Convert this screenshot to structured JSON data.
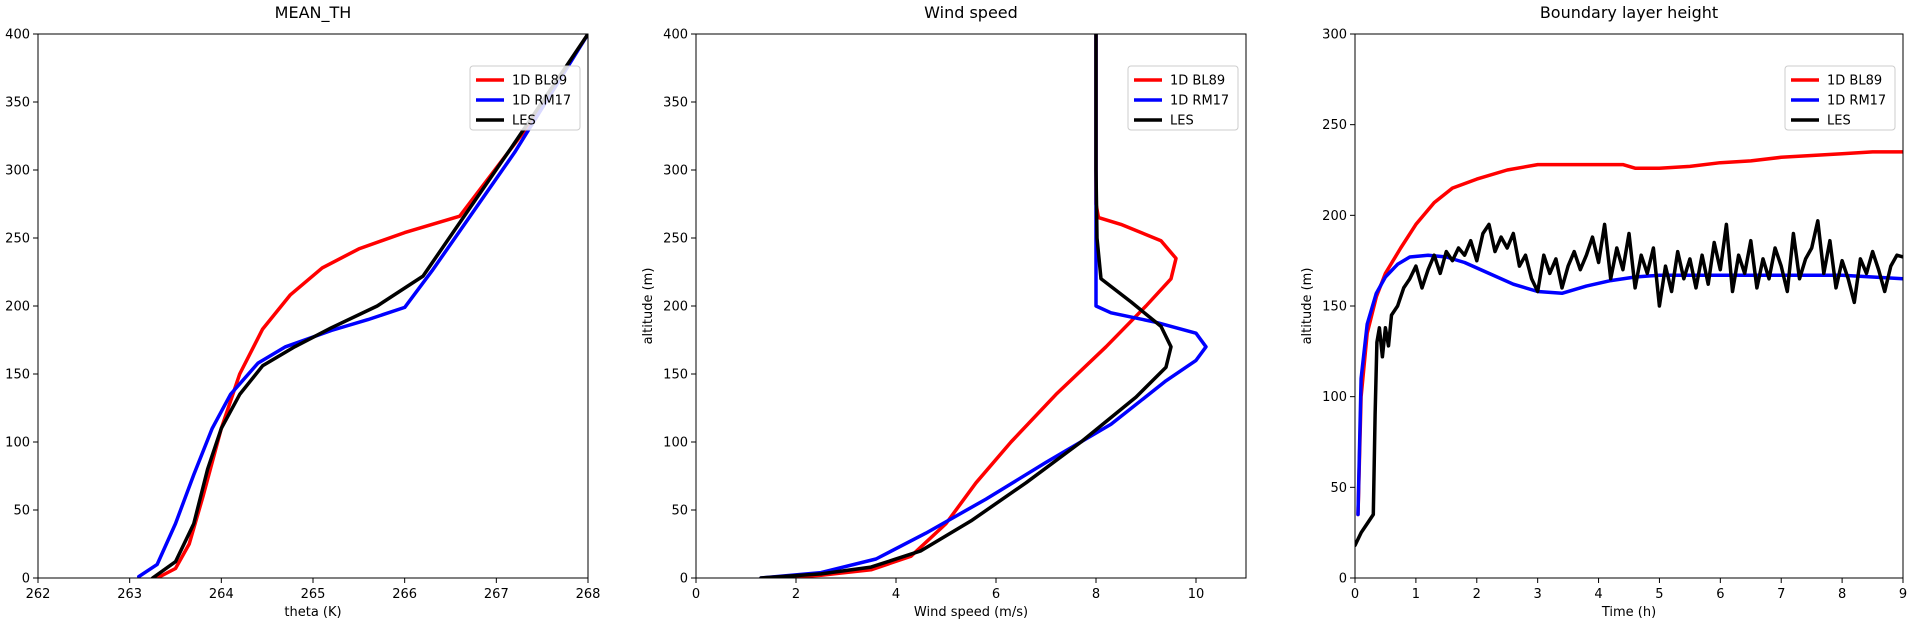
{
  "figure": {
    "background": "#ffffff"
  },
  "chart_data": [
    {
      "type": "line",
      "title": "MEAN_TH",
      "xlabel": "theta (K)",
      "ylabel": "",
      "xlim": [
        262,
        268
      ],
      "ylim": [
        0,
        400
      ],
      "xticks": [
        262,
        263,
        264,
        265,
        266,
        267,
        268
      ],
      "yticks": [
        0,
        50,
        100,
        150,
        200,
        250,
        300,
        350,
        400
      ],
      "grid": false,
      "legend": "top-right",
      "series": [
        {
          "name": "1D BL89",
          "color": "#ff0000",
          "x": [
            263.3,
            263.5,
            263.65,
            263.8,
            264.0,
            264.2,
            264.45,
            264.75,
            265.1,
            265.5,
            266.0,
            266.6,
            267.4,
            268.0
          ],
          "y": [
            0,
            7,
            25,
            60,
            110,
            150,
            183,
            208,
            228,
            242,
            254,
            266,
            337,
            400
          ]
        },
        {
          "name": "1D RM17",
          "color": "#0000ff",
          "x": [
            263.1,
            263.3,
            263.5,
            263.7,
            263.9,
            264.1,
            264.4,
            264.7,
            265.2,
            265.6,
            266.0,
            266.3,
            267.2,
            268.0
          ],
          "y": [
            1,
            10,
            40,
            76,
            110,
            135,
            158,
            170,
            182,
            190,
            199,
            226,
            313,
            400
          ]
        },
        {
          "name": "LES",
          "color": "#000000",
          "x": [
            263.25,
            263.5,
            263.7,
            263.85,
            264.0,
            264.2,
            264.45,
            264.8,
            265.2,
            265.7,
            266.2,
            267.2,
            268.0
          ],
          "y": [
            0,
            12,
            40,
            80,
            110,
            135,
            156,
            170,
            184,
            200,
            222,
            320,
            400
          ]
        }
      ]
    },
    {
      "type": "line",
      "title": "Wind speed",
      "xlabel": "Wind speed (m/s)",
      "ylabel": "altitude (m)",
      "xlim": [
        0,
        11
      ],
      "ylim": [
        0,
        400
      ],
      "xticks": [
        0,
        2,
        4,
        6,
        8,
        10
      ],
      "yticks": [
        0,
        50,
        100,
        150,
        200,
        250,
        300,
        350,
        400
      ],
      "grid": false,
      "legend": "top-right",
      "series": [
        {
          "name": "1D BL89",
          "color": "#ff0000",
          "x": [
            1.5,
            2.5,
            3.5,
            4.3,
            5.0,
            5.6,
            6.3,
            7.2,
            8.2,
            9.0,
            9.5,
            9.6,
            9.3,
            8.5,
            8.05,
            8.0,
            8.0
          ],
          "y": [
            0,
            2,
            6,
            16,
            40,
            70,
            100,
            135,
            170,
            200,
            220,
            235,
            248,
            260,
            265,
            275,
            400
          ]
        },
        {
          "name": "1D RM17",
          "color": "#0000ff",
          "x": [
            1.3,
            2.5,
            3.6,
            4.6,
            5.8,
            7.0,
            8.3,
            9.4,
            10.0,
            10.2,
            10.0,
            9.2,
            8.3,
            8.0,
            8.0,
            8.0
          ],
          "y": [
            0,
            4,
            14,
            33,
            58,
            85,
            113,
            145,
            160,
            170,
            180,
            188,
            195,
            200,
            220,
            400
          ]
        },
        {
          "name": "LES",
          "color": "#000000",
          "x": [
            1.3,
            2.5,
            3.5,
            4.5,
            5.5,
            6.6,
            7.7,
            8.8,
            9.4,
            9.5,
            9.3,
            8.7,
            8.1,
            8.02,
            8.0,
            8.0
          ],
          "y": [
            0,
            3,
            8,
            20,
            42,
            70,
            100,
            133,
            155,
            170,
            185,
            203,
            220,
            250,
            300,
            400
          ]
        }
      ]
    },
    {
      "type": "line",
      "title": "Boundary layer height",
      "xlabel": "Time (h)",
      "ylabel": "altitude (m)",
      "xlim": [
        0,
        9
      ],
      "ylim": [
        0,
        300
      ],
      "xticks": [
        0,
        1,
        2,
        3,
        4,
        5,
        6,
        7,
        8,
        9
      ],
      "yticks": [
        0,
        50,
        100,
        150,
        200,
        250,
        300
      ],
      "grid": false,
      "legend": "top-right",
      "series": [
        {
          "name": "1D BL89",
          "color": "#ff0000",
          "x": [
            0.05,
            0.1,
            0.2,
            0.35,
            0.5,
            0.75,
            1.0,
            1.3,
            1.6,
            2.0,
            2.5,
            3.0,
            3.5,
            4.0,
            4.4,
            4.6,
            5.0,
            5.5,
            6.0,
            6.5,
            7.0,
            7.5,
            8.0,
            8.5,
            9.0
          ],
          "y": [
            35,
            100,
            135,
            155,
            168,
            182,
            195,
            207,
            215,
            220,
            225,
            228,
            228,
            228,
            228,
            226,
            226,
            227,
            229,
            230,
            232,
            233,
            234,
            235,
            235
          ]
        },
        {
          "name": "1D RM17",
          "color": "#0000ff",
          "x": [
            0.05,
            0.1,
            0.2,
            0.35,
            0.5,
            0.7,
            0.9,
            1.2,
            1.5,
            1.8,
            2.2,
            2.6,
            3.0,
            3.4,
            3.8,
            4.2,
            4.6,
            5.0,
            6.0,
            7.0,
            8.0,
            8.5,
            9.0
          ],
          "y": [
            35,
            110,
            140,
            157,
            166,
            173,
            177,
            178,
            177,
            174,
            168,
            162,
            158,
            157,
            161,
            164,
            166,
            167,
            167,
            167,
            167,
            166,
            165
          ]
        },
        {
          "name": "LES",
          "color": "#000000",
          "x": [
            0.0,
            0.1,
            0.2,
            0.3,
            0.33,
            0.36,
            0.4,
            0.45,
            0.5,
            0.55,
            0.6,
            0.7,
            0.8,
            0.9,
            1.0,
            1.1,
            1.2,
            1.3,
            1.4,
            1.5,
            1.6,
            1.7,
            1.8,
            1.9,
            2.0,
            2.1,
            2.2,
            2.3,
            2.4,
            2.5,
            2.6,
            2.7,
            2.8,
            2.9,
            3.0,
            3.1,
            3.2,
            3.3,
            3.4,
            3.5,
            3.6,
            3.7,
            3.8,
            3.9,
            4.0,
            4.1,
            4.2,
            4.3,
            4.4,
            4.5,
            4.6,
            4.7,
            4.8,
            4.9,
            5.0,
            5.1,
            5.2,
            5.3,
            5.4,
            5.5,
            5.6,
            5.7,
            5.8,
            5.9,
            6.0,
            6.1,
            6.2,
            6.3,
            6.4,
            6.5,
            6.6,
            6.7,
            6.8,
            6.9,
            7.0,
            7.1,
            7.2,
            7.3,
            7.4,
            7.5,
            7.6,
            7.7,
            7.8,
            7.9,
            8.0,
            8.1,
            8.2,
            8.3,
            8.4,
            8.5,
            8.6,
            8.7,
            8.8,
            8.9,
            9.0
          ],
          "y": [
            18,
            25,
            30,
            35,
            90,
            130,
            138,
            122,
            138,
            128,
            145,
            150,
            160,
            165,
            172,
            160,
            170,
            178,
            168,
            180,
            175,
            182,
            178,
            186,
            175,
            190,
            195,
            180,
            188,
            182,
            190,
            172,
            178,
            165,
            158,
            178,
            168,
            176,
            160,
            172,
            180,
            170,
            178,
            188,
            174,
            195,
            165,
            182,
            170,
            190,
            160,
            178,
            168,
            182,
            150,
            172,
            158,
            180,
            165,
            176,
            160,
            178,
            162,
            185,
            170,
            195,
            158,
            178,
            168,
            186,
            160,
            176,
            165,
            182,
            172,
            158,
            190,
            165,
            176,
            182,
            197,
            168,
            186,
            160,
            175,
            165,
            152,
            176,
            168,
            180,
            170,
            158,
            172,
            178,
            177
          ]
        }
      ]
    }
  ]
}
